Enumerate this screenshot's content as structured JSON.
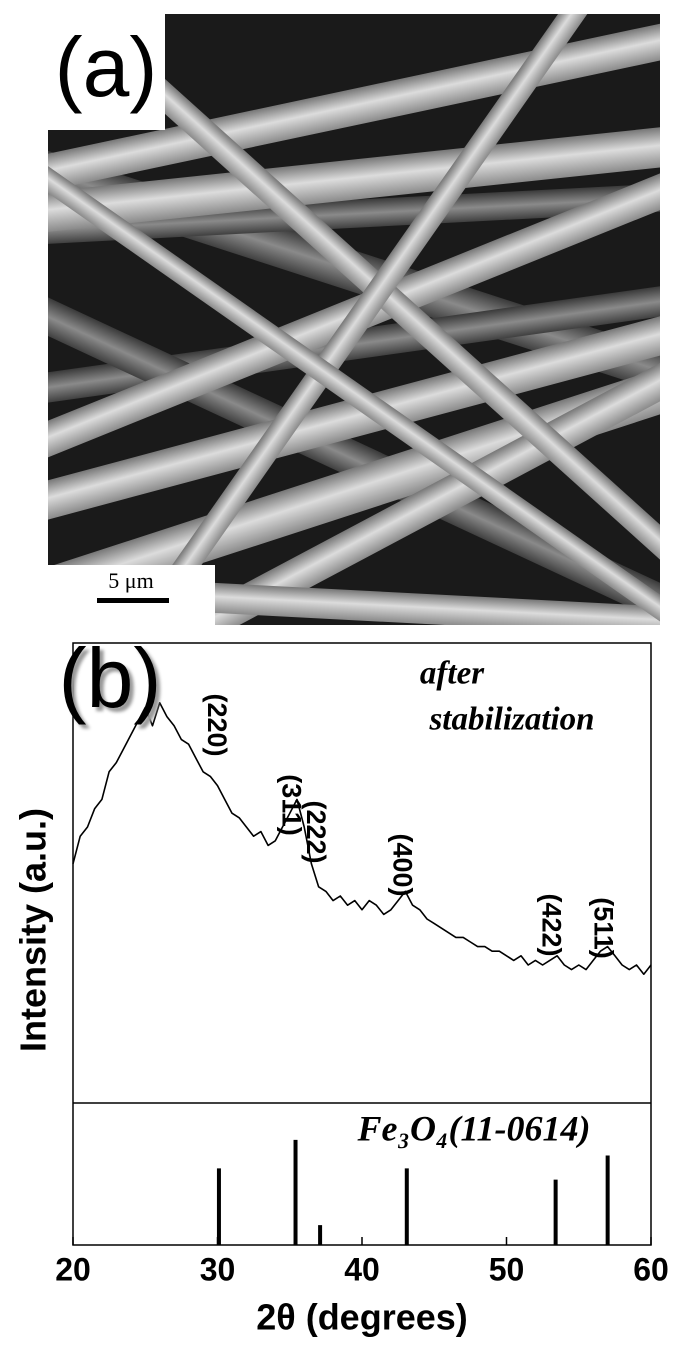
{
  "panel_a": {
    "label": "(a)",
    "scale_bar": "5 μm"
  },
  "chart_data": [
    {
      "type": "line",
      "panel_label": "(b)",
      "annotation": [
        "after",
        "stabilization"
      ],
      "ylabel": "Intensity (a.u.)",
      "color": "#000000",
      "peak_labels": [
        "(220)",
        "(311)",
        "(222)",
        "(400)",
        "(422)",
        "(511)"
      ],
      "x": [
        20,
        20.5,
        21,
        21.5,
        22,
        22.5,
        23,
        23.5,
        24,
        24.5,
        25,
        25.5,
        26,
        26.5,
        27,
        27.5,
        28,
        28.5,
        29,
        29.5,
        30,
        30.5,
        31,
        31.5,
        32,
        32.5,
        33,
        33.5,
        34,
        34.5,
        35,
        35.5,
        36,
        36.5,
        37,
        37.5,
        38,
        38.5,
        39,
        39.5,
        40,
        40.5,
        41,
        41.5,
        42,
        42.5,
        43,
        43.5,
        44,
        44.5,
        45,
        45.5,
        46,
        46.5,
        47,
        47.5,
        48,
        48.5,
        49,
        49.5,
        50,
        50.5,
        51,
        51.5,
        52,
        52.5,
        53,
        53.5,
        54,
        54.5,
        55,
        55.5,
        56,
        56.5,
        57,
        57.5,
        58,
        58.5,
        59,
        59.5,
        60
      ],
      "values": [
        52,
        58,
        60,
        64,
        66,
        72,
        74,
        77,
        80,
        83,
        86,
        82,
        87,
        84,
        82,
        79,
        78,
        75,
        72,
        71,
        69,
        66,
        63,
        62,
        60,
        58,
        59,
        56,
        57,
        60,
        63,
        66,
        60,
        52,
        47,
        46,
        44,
        45,
        43,
        44,
        42,
        44,
        43,
        41,
        42,
        44,
        46,
        43,
        42,
        40,
        39,
        38,
        37,
        36,
        36,
        35,
        34,
        34,
        33,
        33,
        32,
        31,
        32,
        30,
        31,
        30,
        31,
        32,
        30,
        29,
        30,
        29,
        31,
        33,
        34,
        32,
        30,
        29,
        30,
        28,
        30
      ],
      "xlim": [
        20,
        60
      ],
      "ylim": [
        0,
        100
      ]
    },
    {
      "type": "stem",
      "title": "Fe₃O₄(11-0614)",
      "color": "#000000",
      "x": [
        30.1,
        35.4,
        37.1,
        43.1,
        53.4,
        57.0
      ],
      "values": [
        54,
        74,
        14,
        54,
        46,
        63
      ],
      "xlim": [
        20,
        60
      ],
      "ylim": [
        0,
        100
      ],
      "xticks": [
        20,
        30,
        40,
        50,
        60
      ],
      "xlabel": "2θ (degrees)"
    }
  ]
}
